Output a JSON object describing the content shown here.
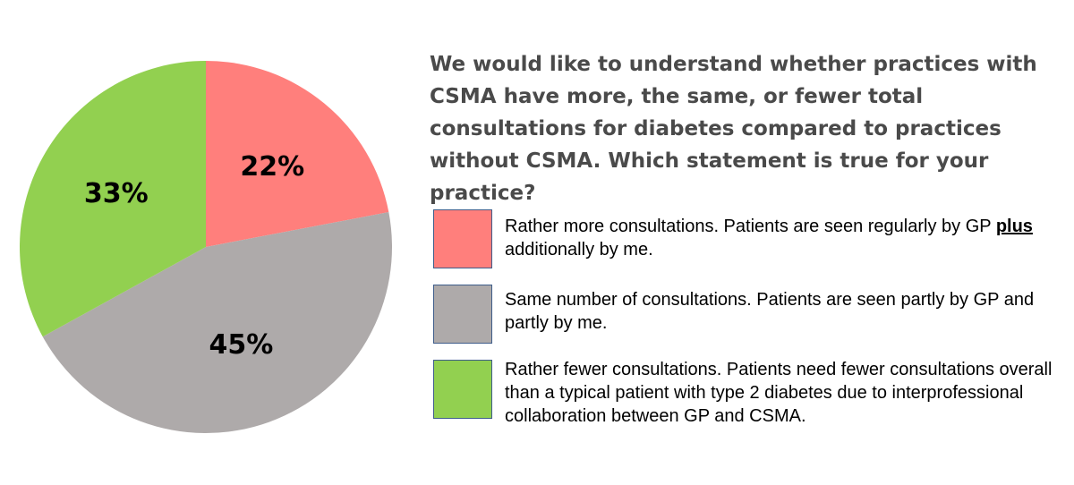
{
  "chart_data": {
    "type": "pie",
    "title": "We would like to understand whether practices with CSMA have more, the same, or fewer total consultations for diabetes compared to practices without CSMA. Which statement is true for your practice?",
    "slices": [
      {
        "label_before": "Rather more consultations. Patients are seen regularly by GP ",
        "label_emphasis": "plus",
        "label_after": " additionally by me.",
        "value": 22,
        "display": "22%",
        "color": "#ff7f7c"
      },
      {
        "label_before": "Same number of consultations. Patients are seen partly by GP and partly by me.",
        "label_emphasis": "",
        "label_after": "",
        "value": 45,
        "display": "45%",
        "color": "#aeaaaa"
      },
      {
        "label_before": "Rather fewer consultations. Patients need fewer consultations overall than a typical patient with type 2 diabetes due to interprofessional collaboration between GP and CSMA.",
        "label_emphasis": "",
        "label_after": "",
        "value": 33,
        "display": "33%",
        "color": "#92d050"
      }
    ],
    "legend_position": "right"
  }
}
